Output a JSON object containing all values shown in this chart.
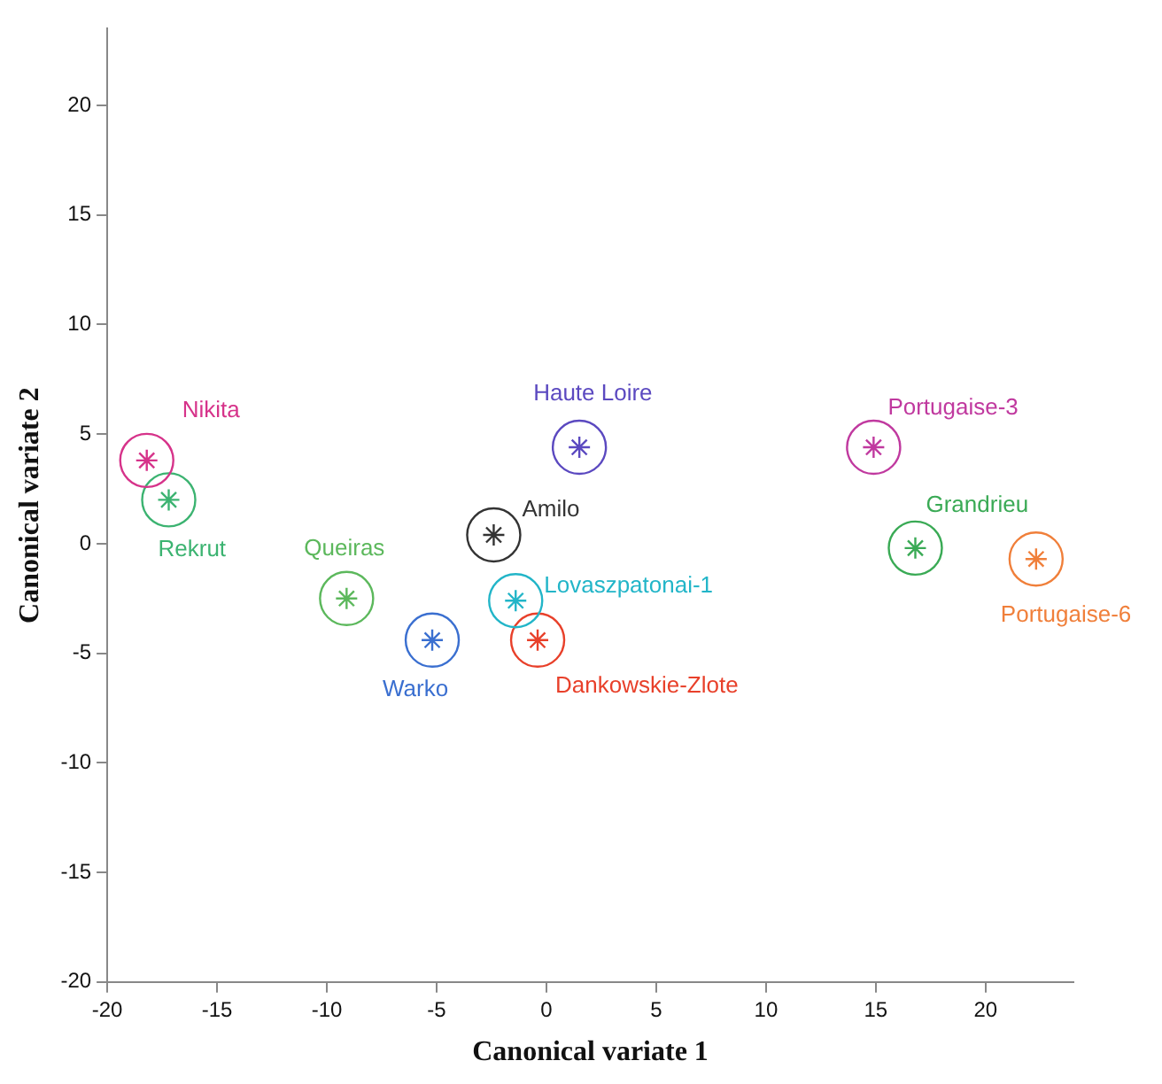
{
  "chart_data": {
    "type": "scatter",
    "xlabel": "Canonical variate 1",
    "ylabel": "Canonical variate 2",
    "xlim": [
      -20,
      24
    ],
    "ylim": [
      -20,
      23.5
    ],
    "xticks": [
      -20,
      -15,
      -10,
      -5,
      0,
      5,
      10,
      15,
      20
    ],
    "yticks": [
      -20,
      -15,
      -10,
      -5,
      0,
      5,
      10,
      15,
      20
    ],
    "grid": false,
    "legend": false,
    "marker": "circle",
    "series": [
      {
        "name": "Nikita",
        "color": "#d6338a",
        "x": [
          -18.2
        ],
        "values": [
          3.8
        ]
      },
      {
        "name": "Rekrut",
        "color": "#3cb371",
        "x": [
          -17.2
        ],
        "values": [
          2.0
        ]
      },
      {
        "name": "Queiras",
        "color": "#5cb85c",
        "x": [
          -9.1
        ],
        "values": [
          -2.5
        ]
      },
      {
        "name": "Warko",
        "color": "#3a6fd0",
        "x": [
          -5.2
        ],
        "values": [
          -4.4
        ]
      },
      {
        "name": "Amilo",
        "color": "#333333",
        "x": [
          -2.4
        ],
        "values": [
          0.4
        ]
      },
      {
        "name": "Lovaszpatonai-1",
        "color": "#22b5c8",
        "x": [
          -1.4
        ],
        "values": [
          -2.6
        ]
      },
      {
        "name": "Dankowskie-Zlote",
        "color": "#e8402a",
        "x": [
          -0.4
        ],
        "values": [
          -4.4
        ]
      },
      {
        "name": "Haute Loire",
        "color": "#5b49c0",
        "x": [
          1.5
        ],
        "values": [
          4.4
        ]
      },
      {
        "name": "Portugaise-3",
        "color": "#c0399f",
        "x": [
          14.9
        ],
        "values": [
          4.4
        ]
      },
      {
        "name": "Grandrieu",
        "color": "#3aaa55",
        "x": [
          16.8
        ],
        "values": [
          -0.2
        ]
      },
      {
        "name": "Portugaise-6",
        "color": "#f07f3a",
        "x": [
          22.3
        ],
        "values": [
          -0.7
        ]
      }
    ]
  }
}
